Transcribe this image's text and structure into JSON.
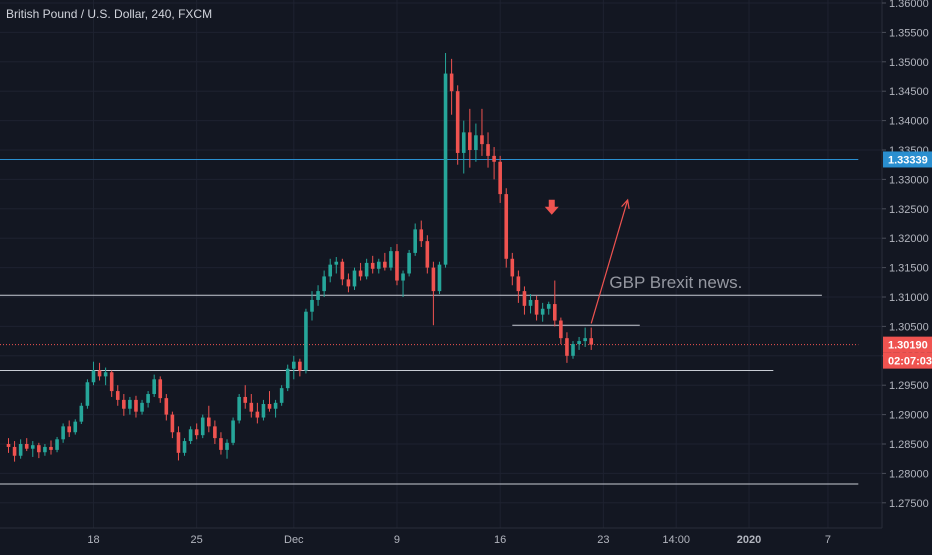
{
  "colors": {
    "background": "#131722",
    "up": "#26a69a",
    "down": "#ef5350",
    "axis_text": "#b2b5be",
    "grid": "#1e2230",
    "white_line": "#c8ccd4",
    "blue_line": "#2a8fd0",
    "price_badge": "#ef5350",
    "blue_badge": "#2a8fd0",
    "annotation": "#9598a1",
    "arrow": "#ef5350"
  },
  "chart_data": {
    "type": "candlestick",
    "title": "British Pound / U.S. Dollar, 240, FXCM",
    "ylim": [
      1.275,
      1.36
    ],
    "y_ticks": [
      "1.36000",
      "1.35500",
      "1.35000",
      "1.34500",
      "1.34000",
      "1.33500",
      "1.33000",
      "1.32500",
      "1.32000",
      "1.31500",
      "1.31000",
      "1.30500",
      "1.30000",
      "1.29500",
      "1.29000",
      "1.28500",
      "1.28000",
      "1.27500"
    ],
    "y_tick_values": [
      1.36,
      1.355,
      1.35,
      1.345,
      1.34,
      1.335,
      1.33,
      1.325,
      1.32,
      1.315,
      1.31,
      1.305,
      1.3,
      1.295,
      1.29,
      1.285,
      1.28,
      1.275
    ],
    "x_ticks": [
      {
        "label": "18",
        "bar": 14
      },
      {
        "label": "25",
        "bar": 31
      },
      {
        "label": "Dec",
        "bar": 47
      },
      {
        "label": "9",
        "bar": 64
      },
      {
        "label": "16",
        "bar": 81
      },
      {
        "label": "23",
        "bar": 98
      },
      {
        "label": "14:00",
        "bar": 110
      },
      {
        "label": "2020",
        "bar": 122,
        "bold": true
      },
      {
        "label": "7",
        "bar": 135
      }
    ],
    "bars": 97,
    "candles": [
      [
        1.285,
        1.286,
        1.2835,
        1.2845
      ],
      [
        1.2845,
        1.2855,
        1.282,
        1.283
      ],
      [
        1.283,
        1.2858,
        1.2825,
        1.285
      ],
      [
        1.285,
        1.286,
        1.2838,
        1.2842
      ],
      [
        1.2842,
        1.2855,
        1.2828,
        1.2848
      ],
      [
        1.2848,
        1.2852,
        1.2826,
        1.2836
      ],
      [
        1.2836,
        1.285,
        1.283,
        1.2845
      ],
      [
        1.2845,
        1.2856,
        1.2832,
        1.284
      ],
      [
        1.284,
        1.2862,
        1.2836,
        1.2858
      ],
      [
        1.2858,
        1.2885,
        1.2852,
        1.288
      ],
      [
        1.288,
        1.289,
        1.2862,
        1.287
      ],
      [
        1.287,
        1.2892,
        1.2866,
        1.2888
      ],
      [
        1.2888,
        1.292,
        1.2884,
        1.2915
      ],
      [
        1.2915,
        1.296,
        1.291,
        1.2955
      ],
      [
        1.2955,
        1.299,
        1.295,
        1.2975
      ],
      [
        1.2975,
        1.2988,
        1.2958,
        1.2965
      ],
      [
        1.2965,
        1.298,
        1.295,
        1.2972
      ],
      [
        1.2972,
        1.2975,
        1.293,
        1.294
      ],
      [
        1.294,
        1.295,
        1.2915,
        1.2925
      ],
      [
        1.2925,
        1.2935,
        1.2898,
        1.291
      ],
      [
        1.291,
        1.293,
        1.29,
        1.2925
      ],
      [
        1.2925,
        1.2932,
        1.2895,
        1.2905
      ],
      [
        1.2905,
        1.2925,
        1.29,
        1.292
      ],
      [
        1.292,
        1.294,
        1.2912,
        1.2935
      ],
      [
        1.2935,
        1.2968,
        1.293,
        1.296
      ],
      [
        1.296,
        1.2965,
        1.292,
        1.2928
      ],
      [
        1.2928,
        1.2935,
        1.289,
        1.29
      ],
      [
        1.29,
        1.2905,
        1.286,
        1.287
      ],
      [
        1.287,
        1.288,
        1.2822,
        1.2835
      ],
      [
        1.2835,
        1.286,
        1.283,
        1.2855
      ],
      [
        1.2855,
        1.288,
        1.285,
        1.2875
      ],
      [
        1.2875,
        1.2885,
        1.2858,
        1.2865
      ],
      [
        1.2865,
        1.29,
        1.286,
        1.2895
      ],
      [
        1.2895,
        1.2915,
        1.287,
        1.288
      ],
      [
        1.288,
        1.289,
        1.285,
        1.286
      ],
      [
        1.286,
        1.287,
        1.2832,
        1.284
      ],
      [
        1.284,
        1.2858,
        1.2825,
        1.2852
      ],
      [
        1.2852,
        1.2895,
        1.2848,
        1.289
      ],
      [
        1.289,
        1.2935,
        1.2885,
        1.293
      ],
      [
        1.293,
        1.295,
        1.291,
        1.292
      ],
      [
        1.292,
        1.2935,
        1.2895,
        1.2905
      ],
      [
        1.2905,
        1.292,
        1.2885,
        1.2895
      ],
      [
        1.2895,
        1.2925,
        1.289,
        1.2918
      ],
      [
        1.2918,
        1.294,
        1.2905,
        1.291
      ],
      [
        1.291,
        1.2925,
        1.2895,
        1.292
      ],
      [
        1.292,
        1.295,
        1.2915,
        1.2945
      ],
      [
        1.2945,
        1.2985,
        1.294,
        1.2978
      ],
      [
        1.2978,
        1.3,
        1.296,
        1.299
      ],
      [
        1.299,
        1.2995,
        1.2965,
        1.2975
      ],
      [
        1.2975,
        1.308,
        1.297,
        1.3075
      ],
      [
        1.3075,
        1.311,
        1.306,
        1.3095
      ],
      [
        1.3095,
        1.312,
        1.3085,
        1.311
      ],
      [
        1.311,
        1.3145,
        1.31,
        1.3135
      ],
      [
        1.3135,
        1.3165,
        1.3125,
        1.3155
      ],
      [
        1.3155,
        1.3168,
        1.314,
        1.316
      ],
      [
        1.316,
        1.3165,
        1.312,
        1.313
      ],
      [
        1.313,
        1.314,
        1.3108,
        1.3118
      ],
      [
        1.3118,
        1.315,
        1.3112,
        1.3145
      ],
      [
        1.3145,
        1.3158,
        1.3128,
        1.3135
      ],
      [
        1.3135,
        1.3165,
        1.313,
        1.3158
      ],
      [
        1.3158,
        1.317,
        1.314,
        1.3148
      ],
      [
        1.3148,
        1.3165,
        1.314,
        1.316
      ],
      [
        1.316,
        1.3175,
        1.3145,
        1.315
      ],
      [
        1.315,
        1.3185,
        1.3145,
        1.3178
      ],
      [
        1.3178,
        1.319,
        1.312,
        1.3128
      ],
      [
        1.3128,
        1.3145,
        1.31,
        1.314
      ],
      [
        1.314,
        1.318,
        1.3135,
        1.3175
      ],
      [
        1.3175,
        1.3225,
        1.317,
        1.3215
      ],
      [
        1.3215,
        1.323,
        1.3185,
        1.3195
      ],
      [
        1.3195,
        1.3205,
        1.314,
        1.315
      ],
      [
        1.315,
        1.316,
        1.3052,
        1.311
      ],
      [
        1.311,
        1.316,
        1.3105,
        1.3155
      ],
      [
        1.3155,
        1.3515,
        1.315,
        1.348
      ],
      [
        1.348,
        1.3505,
        1.341,
        1.345
      ],
      [
        1.345,
        1.346,
        1.3325,
        1.3345
      ],
      [
        1.3345,
        1.34,
        1.331,
        1.338
      ],
      [
        1.338,
        1.342,
        1.332,
        1.335
      ],
      [
        1.335,
        1.3395,
        1.333,
        1.3375
      ],
      [
        1.3375,
        1.342,
        1.334,
        1.336
      ],
      [
        1.336,
        1.338,
        1.332,
        1.334
      ],
      [
        1.334,
        1.3355,
        1.33,
        1.333
      ],
      [
        1.333,
        1.334,
        1.326,
        1.3275
      ],
      [
        1.3275,
        1.3285,
        1.315,
        1.3165
      ],
      [
        1.3165,
        1.3175,
        1.312,
        1.3135
      ],
      [
        1.3135,
        1.3145,
        1.309,
        1.311
      ],
      [
        1.311,
        1.3118,
        1.307,
        1.3085
      ],
      [
        1.3085,
        1.3105,
        1.3072,
        1.3095
      ],
      [
        1.3095,
        1.3102,
        1.306,
        1.307
      ],
      [
        1.307,
        1.309,
        1.3058,
        1.308
      ],
      [
        1.308,
        1.3092,
        1.307,
        1.3088
      ],
      [
        1.3088,
        1.3128,
        1.305,
        1.306
      ],
      [
        1.306,
        1.3065,
        1.302,
        1.303
      ],
      [
        1.303,
        1.304,
        1.2988,
        1.3
      ],
      [
        1.3,
        1.3025,
        1.2995,
        1.302
      ],
      [
        1.302,
        1.3032,
        1.301,
        1.3025
      ],
      [
        1.3025,
        1.3048,
        1.3015,
        1.303
      ],
      [
        1.303,
        1.3048,
        1.301,
        1.3019
      ]
    ],
    "hlines": [
      {
        "price": 1.33339,
        "color": "blue",
        "x_start_bar": -2,
        "x_end_bar": 140
      },
      {
        "price": 1.3103,
        "color": "white",
        "x_start_bar": -2,
        "x_end_bar": 134
      },
      {
        "price": 1.3052,
        "color": "white",
        "x_start_bar": 83,
        "x_end_bar": 104
      },
      {
        "price": 1.2975,
        "color": "white",
        "x_start_bar": -2,
        "x_end_bar": 126
      },
      {
        "price": 1.2782,
        "color": "white",
        "x_start_bar": -2,
        "x_end_bar": 140
      },
      {
        "price": 1.3019,
        "color": "red-dotted",
        "x_start_bar": -2,
        "x_end_bar": 140
      }
    ],
    "annotation_text": "GBP Brexit news.",
    "annotation_price": 1.3115,
    "annotation_bar": 99,
    "arrow_up": {
      "from_bar": 96,
      "from_price": 1.3055,
      "to_bar": 102,
      "to_price": 1.3265
    },
    "arrow_down": {
      "bar": 89.5,
      "price": 1.325
    },
    "last_price_label": "1.30190",
    "blue_price_label": "1.33339",
    "countdown_label": "02:07:03"
  }
}
